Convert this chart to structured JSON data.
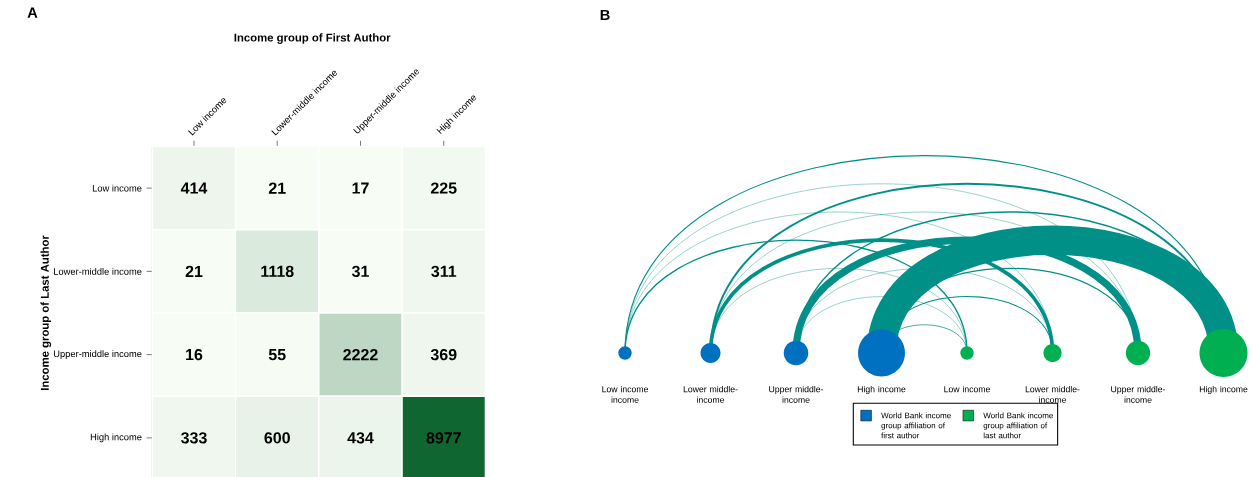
{
  "chart_data": [
    {
      "type": "heatmap",
      "title": "A",
      "xlabel": "Income group of First Author",
      "ylabel": "Income group of Last Author",
      "categories": [
        "Low income",
        "Lower-middle income",
        "Upper-middle income",
        "High income"
      ],
      "y_categories": [
        "Low income",
        "Lower-middle income",
        "Upper-middle income",
        "High income"
      ],
      "cells": [
        [
          414,
          21,
          17,
          225
        ],
        [
          21,
          1118,
          31,
          311
        ],
        [
          16,
          55,
          2222,
          369
        ],
        [
          333,
          600,
          434,
          8977
        ]
      ],
      "data_labels": true
    },
    {
      "type": "other",
      "title": "B",
      "categories": [
        "Low income income",
        "Lower middle-income",
        "Upper middle-income",
        "High income",
        "Low income",
        "Lower middle-income",
        "Upper middle-income",
        "High income"
      ],
      "colors": [
        "#0070c0",
        "#0070c0",
        "#0070c0",
        "#0070c0",
        "#00b050",
        "#00b050",
        "#00b050",
        "#00b050"
      ],
      "annotations": [
        "World Bank income group affiliation of first author",
        "World Bank income group affiliation of last author"
      ]
    }
  ]
}
